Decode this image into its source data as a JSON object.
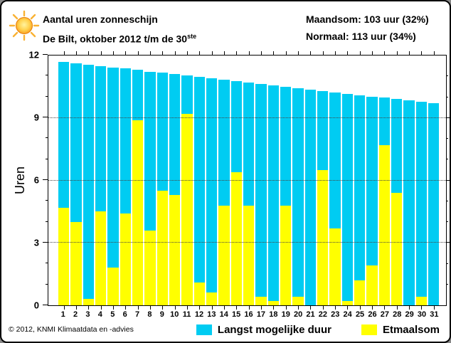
{
  "header": {
    "title": "Aantal uren zonneschijn",
    "subtitle": "De Bilt, oktober 2012 t/m de 30",
    "subtitle_sup": "ste",
    "maandsom": "Maandsom: 103 uur (32%)",
    "normaal": "Normaal: 113 uur (34%)"
  },
  "colors": {
    "daylight": "#00CCF2",
    "sunshine": "#FFFF00",
    "grid": "#444444",
    "axis": "#000000",
    "sun_core": "#FFDD55",
    "sun_edge": "#F7941D"
  },
  "chart_data": {
    "type": "bar",
    "title": "Aantal uren zonneschijn",
    "subtitle": "De Bilt, oktober 2012 t/m de 30ste",
    "xlabel": "",
    "ylabel": "Uren",
    "ylim": [
      0,
      12
    ],
    "yticks": [
      0,
      3,
      6,
      9,
      12
    ],
    "gridlines": [
      3,
      6,
      9
    ],
    "grid": "dotted",
    "legend_position": "bottom-right",
    "categories": [
      1,
      2,
      3,
      4,
      5,
      6,
      7,
      8,
      9,
      10,
      11,
      12,
      13,
      14,
      15,
      16,
      17,
      18,
      19,
      20,
      21,
      22,
      23,
      24,
      25,
      26,
      27,
      28,
      29,
      30,
      31
    ],
    "series": [
      {
        "name": "Langst mogelijke duur",
        "color": "#00CCF2",
        "values": [
          11.7,
          11.63,
          11.57,
          11.5,
          11.43,
          11.37,
          11.3,
          11.23,
          11.17,
          11.1,
          11.03,
          10.97,
          10.9,
          10.83,
          10.77,
          10.7,
          10.63,
          10.57,
          10.5,
          10.43,
          10.37,
          10.3,
          10.23,
          10.17,
          10.1,
          10.03,
          9.97,
          9.9,
          9.83,
          9.77,
          9.7
        ]
      },
      {
        "name": "Etmaalsom",
        "color": "#FFFF00",
        "values": [
          4.7,
          4.0,
          0.3,
          4.5,
          1.8,
          4.4,
          8.9,
          3.6,
          5.5,
          5.3,
          9.2,
          1.1,
          0.6,
          4.8,
          6.4,
          4.8,
          0.4,
          0.2,
          4.8,
          0.4,
          0.0,
          6.5,
          3.7,
          0.2,
          1.2,
          1.9,
          7.7,
          5.4,
          0.0,
          0.4,
          null
        ]
      }
    ]
  },
  "footer": {
    "copyright": "© 2012, KNMI Klimaatdata en -advies"
  }
}
